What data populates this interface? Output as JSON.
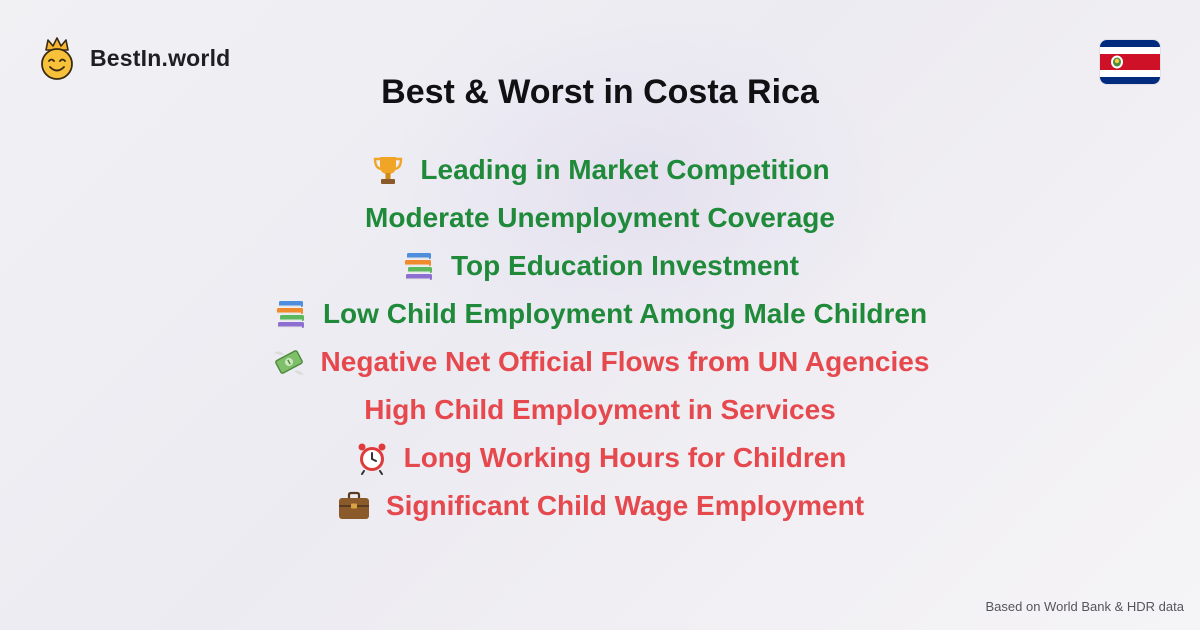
{
  "brand": {
    "name": "BestIn.world",
    "logo_icon": "crown-smiley-icon"
  },
  "flag": {
    "country": "Costa Rica",
    "icon": "costa-rica-flag-icon",
    "colors": {
      "blue": "#002b7f",
      "white": "#ffffff",
      "red": "#ce1126"
    }
  },
  "title": "Best & Worst in Costa Rica",
  "colors": {
    "best": "#1f8a3a",
    "worst": "#e5484d"
  },
  "items": [
    {
      "label": "Leading in Market Competition",
      "icon": "trophy-icon",
      "sentiment": "best"
    },
    {
      "label": "Moderate Unemployment Coverage",
      "icon": null,
      "sentiment": "best"
    },
    {
      "label": "Top Education Investment",
      "icon": "books-icon",
      "sentiment": "best"
    },
    {
      "label": "Low Child Employment Among Male Children",
      "icon": "books-icon",
      "sentiment": "best"
    },
    {
      "label": "Negative Net Official Flows from UN Agencies",
      "icon": "money-with-wings-icon",
      "sentiment": "worst"
    },
    {
      "label": "High Child Employment in Services",
      "icon": null,
      "sentiment": "worst"
    },
    {
      "label": "Long Working Hours for Children",
      "icon": "alarm-clock-icon",
      "sentiment": "worst"
    },
    {
      "label": "Significant Child Wage Employment",
      "icon": "briefcase-icon",
      "sentiment": "worst"
    }
  ],
  "footer": "Based on World Bank & HDR data"
}
